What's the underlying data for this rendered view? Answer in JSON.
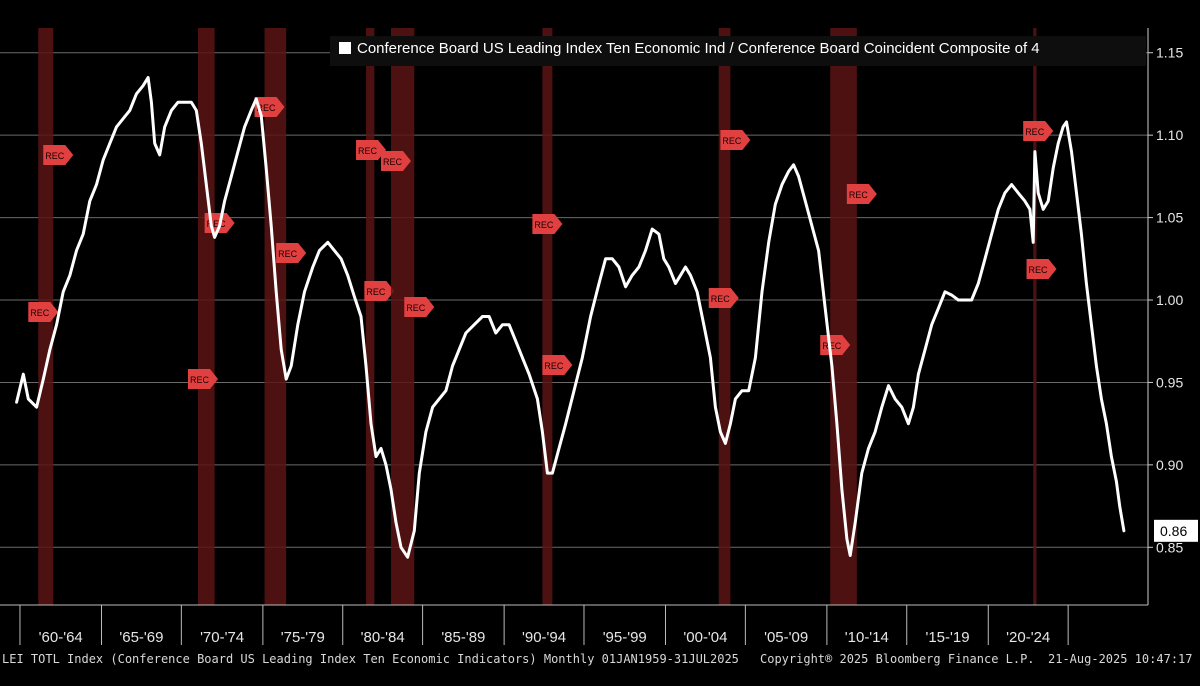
{
  "chart_data": {
    "type": "line",
    "legend": "Conference Board US Leading Index Ten Economic Ind / Conference Board Coincident Composite of 4",
    "legend_position": "top-right",
    "y_ticks": [
      "1.15",
      "1.10",
      "1.05",
      "1.00",
      "0.95",
      "0.90",
      "0.85"
    ],
    "ylim": [
      0.815,
      1.165
    ],
    "xlim": [
      1958.0,
      2027.0
    ],
    "x_tick_labels": [
      "'60-'64",
      "'65-'69",
      "'70-'74",
      "'75-'79",
      "'80-'84",
      "'85-'89",
      "'90-'94",
      "'95-'99",
      "'00-'04",
      "'05-'09",
      "'10-'14",
      "'15-'19",
      "'20-'24"
    ],
    "x_tick_boundaries": [
      1959.2,
      1964.1,
      1968.9,
      1973.8,
      1978.6,
      1983.4,
      1988.3,
      1993.1,
      1998.0,
      2002.8,
      2007.7,
      2012.5,
      2017.4,
      2022.2
    ],
    "last_value_label": "0.86",
    "recession_label": "REC",
    "recessions": [
      [
        1960.3,
        1961.2
      ],
      [
        1969.9,
        1970.9
      ],
      [
        1973.9,
        1975.2
      ],
      [
        1980.0,
        1980.5
      ],
      [
        1981.5,
        1982.9
      ],
      [
        1990.6,
        1991.2
      ],
      [
        2001.2,
        2001.9
      ],
      [
        2007.9,
        2009.5
      ],
      [
        2020.1,
        2020.3
      ]
    ],
    "series": [
      {
        "name": "Conference Board US Leading Index Ten Economic Ind / Conference Board Coincident Composite of 4",
        "color": "#ffffff",
        "points": [
          [
            1959.0,
            0.938
          ],
          [
            1959.4,
            0.955
          ],
          [
            1959.7,
            0.94
          ],
          [
            1960.2,
            0.935
          ],
          [
            1960.6,
            0.952
          ],
          [
            1961.0,
            0.97
          ],
          [
            1961.4,
            0.985
          ],
          [
            1961.8,
            1.005
          ],
          [
            1962.2,
            1.015
          ],
          [
            1962.6,
            1.03
          ],
          [
            1963.0,
            1.04
          ],
          [
            1963.4,
            1.06
          ],
          [
            1963.8,
            1.07
          ],
          [
            1964.2,
            1.085
          ],
          [
            1964.6,
            1.095
          ],
          [
            1965.0,
            1.105
          ],
          [
            1965.4,
            1.11
          ],
          [
            1965.8,
            1.115
          ],
          [
            1966.2,
            1.125
          ],
          [
            1966.6,
            1.13
          ],
          [
            1966.9,
            1.135
          ],
          [
            1967.1,
            1.12
          ],
          [
            1967.3,
            1.095
          ],
          [
            1967.6,
            1.088
          ],
          [
            1967.9,
            1.105
          ],
          [
            1968.3,
            1.115
          ],
          [
            1968.7,
            1.12
          ],
          [
            1969.1,
            1.12
          ],
          [
            1969.5,
            1.12
          ],
          [
            1969.8,
            1.115
          ],
          [
            1970.1,
            1.095
          ],
          [
            1970.4,
            1.07
          ],
          [
            1970.7,
            1.045
          ],
          [
            1970.9,
            1.038
          ],
          [
            1971.2,
            1.045
          ],
          [
            1971.5,
            1.06
          ],
          [
            1971.9,
            1.075
          ],
          [
            1972.3,
            1.09
          ],
          [
            1972.7,
            1.105
          ],
          [
            1973.1,
            1.115
          ],
          [
            1973.4,
            1.122
          ],
          [
            1973.7,
            1.112
          ],
          [
            1974.0,
            1.08
          ],
          [
            1974.3,
            1.045
          ],
          [
            1974.6,
            1.005
          ],
          [
            1974.9,
            0.97
          ],
          [
            1975.2,
            0.952
          ],
          [
            1975.5,
            0.96
          ],
          [
            1975.9,
            0.985
          ],
          [
            1976.3,
            1.005
          ],
          [
            1976.8,
            1.02
          ],
          [
            1977.2,
            1.03
          ],
          [
            1977.7,
            1.035
          ],
          [
            1978.1,
            1.03
          ],
          [
            1978.5,
            1.025
          ],
          [
            1978.9,
            1.015
          ],
          [
            1979.3,
            1.002
          ],
          [
            1979.7,
            0.99
          ],
          [
            1980.0,
            0.96
          ],
          [
            1980.3,
            0.925
          ],
          [
            1980.6,
            0.905
          ],
          [
            1980.9,
            0.91
          ],
          [
            1981.2,
            0.9
          ],
          [
            1981.5,
            0.885
          ],
          [
            1981.8,
            0.865
          ],
          [
            1982.1,
            0.85
          ],
          [
            1982.5,
            0.844
          ],
          [
            1982.9,
            0.86
          ],
          [
            1983.2,
            0.895
          ],
          [
            1983.6,
            0.92
          ],
          [
            1984.0,
            0.935
          ],
          [
            1984.4,
            0.94
          ],
          [
            1984.8,
            0.945
          ],
          [
            1985.2,
            0.96
          ],
          [
            1985.6,
            0.97
          ],
          [
            1986.0,
            0.98
          ],
          [
            1986.5,
            0.985
          ],
          [
            1987.0,
            0.99
          ],
          [
            1987.4,
            0.99
          ],
          [
            1987.8,
            0.98
          ],
          [
            1988.2,
            0.985
          ],
          [
            1988.6,
            0.985
          ],
          [
            1989.0,
            0.975
          ],
          [
            1989.4,
            0.965
          ],
          [
            1989.8,
            0.955
          ],
          [
            1990.3,
            0.94
          ],
          [
            1990.6,
            0.92
          ],
          [
            1990.9,
            0.895
          ],
          [
            1991.2,
            0.895
          ],
          [
            1991.6,
            0.91
          ],
          [
            1992.0,
            0.925
          ],
          [
            1992.5,
            0.945
          ],
          [
            1993.0,
            0.965
          ],
          [
            1993.5,
            0.99
          ],
          [
            1994.0,
            1.01
          ],
          [
            1994.4,
            1.025
          ],
          [
            1994.8,
            1.025
          ],
          [
            1995.2,
            1.02
          ],
          [
            1995.6,
            1.008
          ],
          [
            1996.0,
            1.015
          ],
          [
            1996.4,
            1.02
          ],
          [
            1996.8,
            1.03
          ],
          [
            1997.2,
            1.043
          ],
          [
            1997.6,
            1.04
          ],
          [
            1997.9,
            1.025
          ],
          [
            1998.2,
            1.02
          ],
          [
            1998.6,
            1.01
          ],
          [
            1998.9,
            1.015
          ],
          [
            1999.2,
            1.02
          ],
          [
            1999.5,
            1.015
          ],
          [
            1999.9,
            1.005
          ],
          [
            2000.3,
            0.985
          ],
          [
            2000.7,
            0.965
          ],
          [
            2001.0,
            0.935
          ],
          [
            2001.3,
            0.92
          ],
          [
            2001.6,
            0.913
          ],
          [
            2001.9,
            0.925
          ],
          [
            2002.2,
            0.94
          ],
          [
            2002.6,
            0.945
          ],
          [
            2003.0,
            0.945
          ],
          [
            2003.4,
            0.965
          ],
          [
            2003.8,
            1.005
          ],
          [
            2004.2,
            1.035
          ],
          [
            2004.6,
            1.058
          ],
          [
            2005.0,
            1.07
          ],
          [
            2005.4,
            1.078
          ],
          [
            2005.7,
            1.082
          ],
          [
            2006.0,
            1.075
          ],
          [
            2006.4,
            1.06
          ],
          [
            2006.8,
            1.045
          ],
          [
            2007.2,
            1.03
          ],
          [
            2007.6,
            0.995
          ],
          [
            2008.0,
            0.96
          ],
          [
            2008.3,
            0.925
          ],
          [
            2008.6,
            0.885
          ],
          [
            2008.9,
            0.855
          ],
          [
            2009.1,
            0.845
          ],
          [
            2009.4,
            0.865
          ],
          [
            2009.8,
            0.895
          ],
          [
            2010.2,
            0.91
          ],
          [
            2010.6,
            0.92
          ],
          [
            2011.0,
            0.935
          ],
          [
            2011.4,
            0.948
          ],
          [
            2011.8,
            0.94
          ],
          [
            2012.2,
            0.935
          ],
          [
            2012.6,
            0.925
          ],
          [
            2012.9,
            0.935
          ],
          [
            2013.2,
            0.955
          ],
          [
            2013.6,
            0.97
          ],
          [
            2014.0,
            0.985
          ],
          [
            2014.4,
            0.995
          ],
          [
            2014.8,
            1.005
          ],
          [
            2015.2,
            1.003
          ],
          [
            2015.6,
            1.0
          ],
          [
            2016.0,
            1.0
          ],
          [
            2016.4,
            1.0
          ],
          [
            2016.8,
            1.01
          ],
          [
            2017.2,
            1.025
          ],
          [
            2017.6,
            1.04
          ],
          [
            2018.0,
            1.055
          ],
          [
            2018.4,
            1.065
          ],
          [
            2018.8,
            1.07
          ],
          [
            2019.2,
            1.065
          ],
          [
            2019.6,
            1.06
          ],
          [
            2019.9,
            1.055
          ],
          [
            2020.1,
            1.035
          ],
          [
            2020.2,
            1.09
          ],
          [
            2020.4,
            1.065
          ],
          [
            2020.7,
            1.055
          ],
          [
            2021.0,
            1.06
          ],
          [
            2021.3,
            1.08
          ],
          [
            2021.6,
            1.095
          ],
          [
            2021.9,
            1.105
          ],
          [
            2022.1,
            1.108
          ],
          [
            2022.4,
            1.09
          ],
          [
            2022.7,
            1.065
          ],
          [
            2023.0,
            1.04
          ],
          [
            2023.3,
            1.01
          ],
          [
            2023.6,
            0.985
          ],
          [
            2023.9,
            0.96
          ],
          [
            2024.2,
            0.94
          ],
          [
            2024.5,
            0.925
          ],
          [
            2024.8,
            0.905
          ],
          [
            2025.1,
            0.89
          ],
          [
            2025.3,
            0.875
          ],
          [
            2025.55,
            0.86
          ]
        ]
      }
    ]
  },
  "footer": {
    "left": "LEI TOTL Index (Conference Board US Leading Index Ten Economic Indicators) Monthly 01JAN1959-31JUL2025",
    "copyright": "Copyright® 2025 Bloomberg Finance L.P.",
    "timestamp": "21-Aug-2025 10:47:17"
  }
}
